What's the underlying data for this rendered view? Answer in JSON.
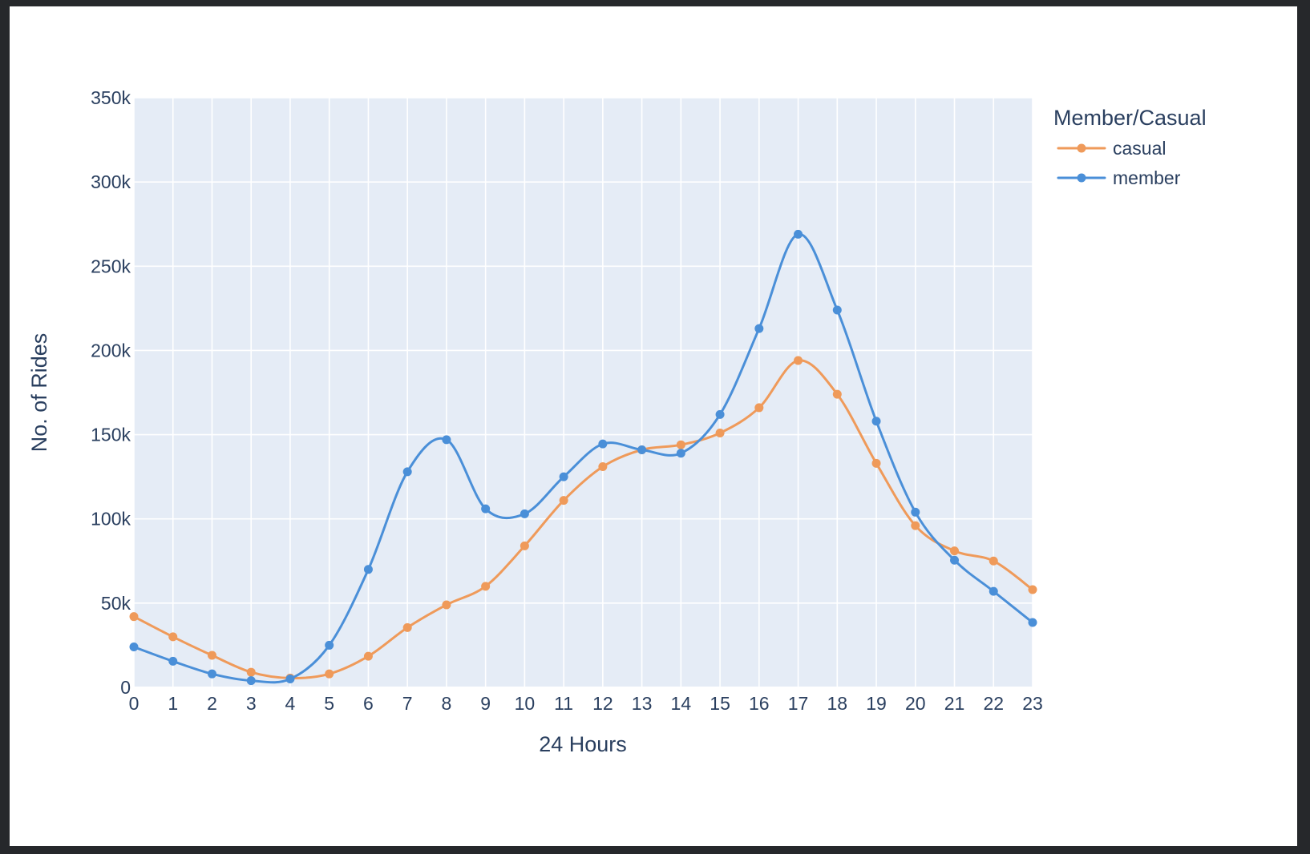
{
  "chart_data": {
    "type": "line",
    "title": "",
    "xlabel": "24 Hours",
    "ylabel": "No. of Rides",
    "x": [
      0,
      1,
      2,
      3,
      4,
      5,
      6,
      7,
      8,
      9,
      10,
      11,
      12,
      13,
      14,
      15,
      16,
      17,
      18,
      19,
      20,
      21,
      22,
      23
    ],
    "x_ticks": [
      "0",
      "1",
      "2",
      "3",
      "4",
      "5",
      "6",
      "7",
      "8",
      "9",
      "10",
      "11",
      "12",
      "13",
      "14",
      "15",
      "16",
      "17",
      "18",
      "19",
      "20",
      "21",
      "22",
      "23"
    ],
    "xlim": [
      0,
      23
    ],
    "ylim": [
      0,
      350000
    ],
    "y_ticks": [
      0,
      50000,
      100000,
      150000,
      200000,
      250000,
      300000,
      350000
    ],
    "y_tick_labels": [
      "0",
      "50k",
      "100k",
      "150k",
      "200k",
      "250k",
      "300k",
      "350k"
    ],
    "grid": true,
    "legend": {
      "title": "Member/Casual",
      "placement": "top-right, outside plot"
    },
    "plot_background": "#e5ecf6",
    "series": [
      {
        "name": "casual",
        "color": "#ef9a5a",
        "values": [
          42000,
          30000,
          19000,
          9000,
          5500,
          8000,
          18500,
          35500,
          49000,
          60000,
          84000,
          111000,
          131000,
          141000,
          144000,
          151000,
          166000,
          194000,
          174000,
          133000,
          96000,
          81000,
          75000,
          58000
        ]
      },
      {
        "name": "member",
        "color": "#4a8fd8",
        "values": [
          24000,
          15500,
          8000,
          4000,
          5000,
          25000,
          70000,
          128000,
          147000,
          106000,
          103000,
          125000,
          144500,
          141000,
          139000,
          162000,
          213000,
          269000,
          224000,
          158000,
          104000,
          75500,
          57000,
          38500
        ]
      }
    ]
  }
}
